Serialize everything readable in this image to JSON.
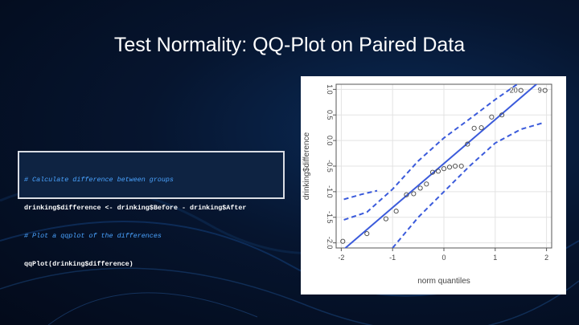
{
  "slide": {
    "title": "Test Normality: QQ-Plot on Paired Data"
  },
  "code": {
    "comment1": "# Calculate difference between groups",
    "line1": "drinking$difference <- drinking$Before - drinking$After",
    "comment2": "# Plot a qqplot of the differences",
    "line2": "qqPlot(drinking$difference)"
  },
  "colors": {
    "background": "#06152f",
    "code_comment": "#4aa3ff",
    "reference_line": "#3b5bdb",
    "points": "#444444"
  },
  "chart_data": {
    "type": "scatter",
    "xlabel": "norm quantiles",
    "ylabel": "drinking$difference",
    "xlim": [
      -2.1,
      2.1
    ],
    "ylim": [
      -2.1,
      1.1
    ],
    "x_ticks": [
      -2,
      -1,
      0,
      1,
      2
    ],
    "y_ticks": [
      -2.0,
      -1.5,
      -1.0,
      -0.5,
      0.0,
      0.5,
      1.0
    ],
    "x_tick_labels": [
      "-2",
      "-1",
      "0",
      "1",
      "2"
    ],
    "y_tick_labels": [
      "-2.0",
      "-1.5",
      "-1.0",
      "-0.5",
      "0.0",
      "0.5",
      "1.0"
    ],
    "grid": true,
    "points": [
      {
        "x": -1.97,
        "y": -1.97
      },
      {
        "x": -1.5,
        "y": -1.82
      },
      {
        "x": -1.13,
        "y": -1.53
      },
      {
        "x": -0.93,
        "y": -1.38
      },
      {
        "x": -0.73,
        "y": -1.06
      },
      {
        "x": -0.59,
        "y": -1.04
      },
      {
        "x": -0.46,
        "y": -0.93
      },
      {
        "x": -0.34,
        "y": -0.85
      },
      {
        "x": -0.22,
        "y": -0.62
      },
      {
        "x": -0.11,
        "y": -0.6
      },
      {
        "x": 0.0,
        "y": -0.55
      },
      {
        "x": 0.11,
        "y": -0.52
      },
      {
        "x": 0.22,
        "y": -0.5
      },
      {
        "x": 0.34,
        "y": -0.5
      },
      {
        "x": 0.46,
        "y": -0.07
      },
      {
        "x": 0.59,
        "y": 0.24
      },
      {
        "x": 0.73,
        "y": 0.25
      },
      {
        "x": 0.93,
        "y": 0.46
      },
      {
        "x": 1.13,
        "y": 0.5
      },
      {
        "x": 1.5,
        "y": 0.98
      },
      {
        "x": 1.97,
        "y": 0.98
      }
    ],
    "point_labels": [
      {
        "text": "20",
        "x": 1.5,
        "y": 0.98
      },
      {
        "text": "9",
        "x": 1.97,
        "y": 0.98
      }
    ],
    "reference_line": {
      "intercept": -0.45,
      "slope": 0.86
    },
    "confidence_band": {
      "upper": [
        [
          -1.95,
          -1.55
        ],
        [
          -1.5,
          -1.4
        ],
        [
          -1.0,
          -0.95
        ],
        [
          -0.5,
          -0.4
        ],
        [
          0.0,
          0.05
        ],
        [
          0.5,
          0.42
        ],
        [
          1.0,
          0.8
        ],
        [
          1.5,
          1.15
        ]
      ],
      "lower": [
        [
          -1.0,
          -2.1
        ],
        [
          -0.5,
          -1.5
        ],
        [
          0.0,
          -1.0
        ],
        [
          0.5,
          -0.5
        ],
        [
          1.0,
          -0.05
        ],
        [
          1.5,
          0.22
        ],
        [
          1.95,
          0.35
        ]
      ],
      "upper_left": [
        [
          -1.95,
          -1.15
        ],
        [
          -1.6,
          -1.05
        ],
        [
          -1.3,
          -0.98
        ]
      ]
    }
  }
}
